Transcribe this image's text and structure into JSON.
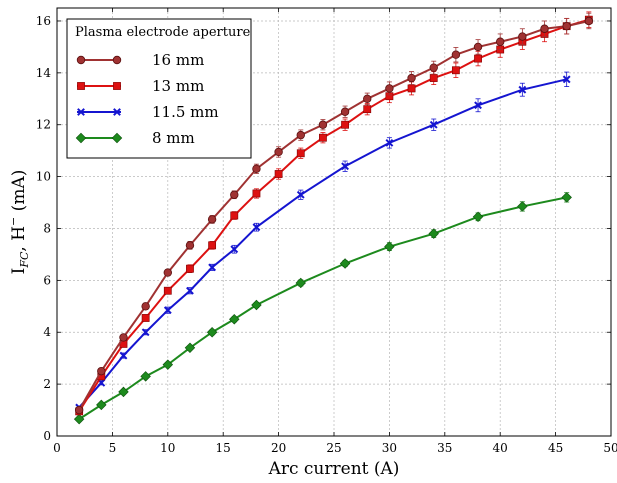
{
  "chart_data": {
    "type": "line",
    "xlabel": "Arc current (A)",
    "ylabel_main": "I",
    "ylabel_sub": "FC",
    "ylabel_rest": ", H",
    "ylabel_sup": "−",
    "ylabel_unit": " (mA)",
    "xlim": [
      0,
      50
    ],
    "ylim": [
      0,
      16.5
    ],
    "xticks": [
      0,
      5,
      10,
      15,
      20,
      25,
      30,
      35,
      40,
      45,
      50
    ],
    "yticks": [
      0,
      2,
      4,
      6,
      8,
      10,
      12,
      14,
      16
    ],
    "grid": true,
    "legend": {
      "title": "Plasma electrode aperture",
      "position": "top-left"
    },
    "series": [
      {
        "name": "16 mm",
        "color": "#a03232",
        "marker": "circle",
        "x": [
          2,
          4,
          6,
          8,
          10,
          12,
          14,
          16,
          18,
          20,
          22,
          24,
          26,
          28,
          30,
          32,
          34,
          36,
          38,
          40,
          42,
          44,
          46,
          48
        ],
        "y": [
          1.0,
          2.5,
          3.8,
          5.0,
          6.3,
          7.35,
          8.35,
          9.3,
          10.3,
          10.95,
          11.6,
          12.0,
          12.5,
          13.0,
          13.4,
          13.8,
          14.2,
          14.7,
          15.0,
          15.2,
          15.4,
          15.7,
          15.8,
          16.0
        ],
        "err": [
          0.05,
          0.08,
          0.1,
          0.12,
          0.12,
          0.15,
          0.15,
          0.15,
          0.18,
          0.2,
          0.2,
          0.2,
          0.22,
          0.22,
          0.25,
          0.25,
          0.25,
          0.28,
          0.28,
          0.3,
          0.3,
          0.3,
          0.3,
          0.3
        ]
      },
      {
        "name": "13 mm",
        "color": "#dd1111",
        "marker": "square",
        "x": [
          2,
          4,
          6,
          8,
          10,
          12,
          14,
          16,
          18,
          20,
          22,
          24,
          26,
          28,
          30,
          32,
          34,
          36,
          38,
          40,
          42,
          44,
          46,
          48
        ],
        "y": [
          0.95,
          2.3,
          3.55,
          4.55,
          5.6,
          6.45,
          7.35,
          8.5,
          9.35,
          10.1,
          10.9,
          11.5,
          12.0,
          12.6,
          13.1,
          13.4,
          13.8,
          14.1,
          14.55,
          14.9,
          15.2,
          15.5,
          15.8,
          16.05
        ],
        "err": [
          0.05,
          0.08,
          0.1,
          0.12,
          0.12,
          0.15,
          0.15,
          0.15,
          0.18,
          0.2,
          0.2,
          0.2,
          0.22,
          0.22,
          0.25,
          0.25,
          0.25,
          0.28,
          0.28,
          0.3,
          0.3,
          0.3,
          0.3,
          0.3
        ]
      },
      {
        "name": "11.5 mm",
        "color": "#1515d0",
        "marker": "x",
        "x": [
          2,
          4,
          6,
          8,
          10,
          12,
          14,
          16,
          18,
          22,
          26,
          30,
          34,
          38,
          42,
          46
        ],
        "y": [
          1.1,
          2.05,
          3.1,
          4.0,
          4.85,
          5.6,
          6.5,
          7.2,
          8.05,
          9.3,
          10.4,
          11.3,
          12.0,
          12.75,
          13.35,
          13.75
        ],
        "err": [
          0.05,
          0.08,
          0.1,
          0.1,
          0.12,
          0.12,
          0.12,
          0.15,
          0.15,
          0.18,
          0.2,
          0.2,
          0.22,
          0.25,
          0.25,
          0.28
        ]
      },
      {
        "name": "8 mm",
        "color": "#1d8a1d",
        "marker": "diamond",
        "x": [
          2,
          4,
          6,
          8,
          10,
          12,
          14,
          16,
          18,
          22,
          26,
          30,
          34,
          38,
          42,
          46
        ],
        "y": [
          0.65,
          1.2,
          1.7,
          2.3,
          2.75,
          3.4,
          4.0,
          4.5,
          5.05,
          5.9,
          6.65,
          7.3,
          7.8,
          8.45,
          8.85,
          9.2
        ],
        "err": [
          0.04,
          0.05,
          0.06,
          0.07,
          0.08,
          0.08,
          0.1,
          0.1,
          0.1,
          0.12,
          0.12,
          0.15,
          0.15,
          0.15,
          0.18,
          0.18
        ]
      }
    ]
  }
}
